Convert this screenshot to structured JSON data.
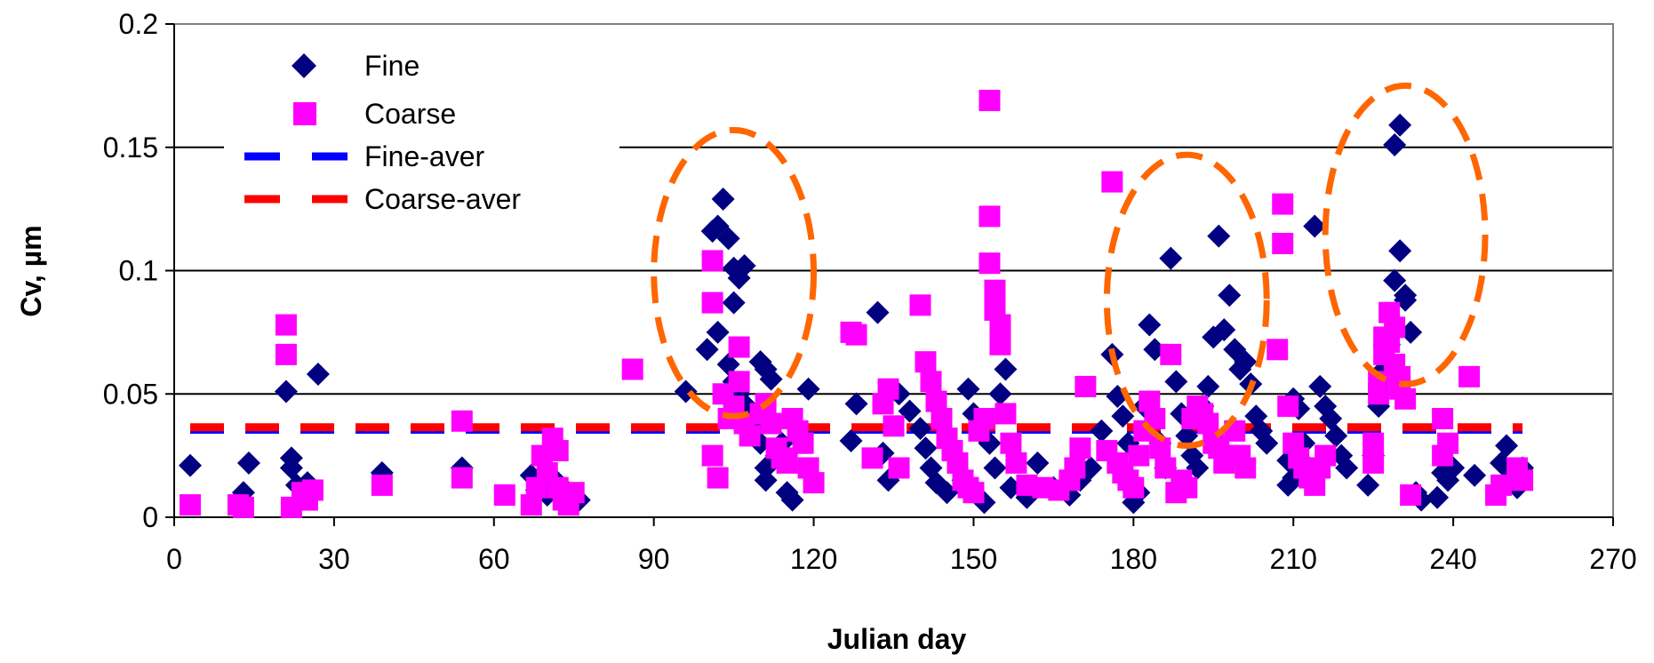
{
  "chart_data": {
    "type": "scatter",
    "title": "",
    "xlabel": "Julian day",
    "ylabel": "Cv, µm",
    "xlim": [
      0,
      270
    ],
    "ylim": [
      0,
      0.2
    ],
    "xticks": [
      0,
      30,
      60,
      90,
      120,
      150,
      180,
      210,
      240,
      270
    ],
    "yticks": [
      0,
      0.05,
      0.1,
      0.15,
      0.2
    ],
    "xtick_labels": [
      "0",
      "30",
      "60",
      "90",
      "120",
      "150",
      "180",
      "210",
      "240",
      "270"
    ],
    "ytick_labels": [
      "0",
      "0.05",
      "0.1",
      "0.15",
      "0.2"
    ],
    "grid": "horizontal",
    "legend_position": "top-left",
    "series": [
      {
        "name": "Fine",
        "marker": "diamond",
        "color": "#000080",
        "points": [
          [
            3,
            0.021
          ],
          [
            13,
            0.01
          ],
          [
            14,
            0.022
          ],
          [
            21,
            0.051
          ],
          [
            22,
            0.024
          ],
          [
            22,
            0.02
          ],
          [
            23,
            0.013
          ],
          [
            24,
            0.011
          ],
          [
            25,
            0.014
          ],
          [
            27,
            0.058
          ],
          [
            39,
            0.018
          ],
          [
            54,
            0.02
          ],
          [
            67,
            0.017
          ],
          [
            68,
            0.011
          ],
          [
            70,
            0.009
          ],
          [
            72,
            0.014
          ],
          [
            74,
            0.01
          ],
          [
            76,
            0.007
          ],
          [
            96,
            0.051
          ],
          [
            100,
            0.068
          ],
          [
            101,
            0.116
          ],
          [
            102,
            0.118
          ],
          [
            103,
            0.129
          ],
          [
            104,
            0.113
          ],
          [
            105,
            0.101
          ],
          [
            105,
            0.087
          ],
          [
            106,
            0.097
          ],
          [
            107,
            0.102
          ],
          [
            102,
            0.075
          ],
          [
            104,
            0.062
          ],
          [
            105,
            0.055
          ],
          [
            106,
            0.05
          ],
          [
            107,
            0.046
          ],
          [
            108,
            0.04
          ],
          [
            109,
            0.035
          ],
          [
            110,
            0.03
          ],
          [
            110,
            0.063
          ],
          [
            111,
            0.06
          ],
          [
            112,
            0.056
          ],
          [
            111,
            0.02
          ],
          [
            111,
            0.015
          ],
          [
            113,
            0.025
          ],
          [
            114,
            0.03
          ],
          [
            115,
            0.01
          ],
          [
            116,
            0.007
          ],
          [
            119,
            0.052
          ],
          [
            127,
            0.031
          ],
          [
            128,
            0.046
          ],
          [
            132,
            0.083
          ],
          [
            133,
            0.026
          ],
          [
            134,
            0.015
          ],
          [
            136,
            0.05
          ],
          [
            138,
            0.043
          ],
          [
            140,
            0.036
          ],
          [
            141,
            0.028
          ],
          [
            142,
            0.02
          ],
          [
            143,
            0.014
          ],
          [
            145,
            0.01
          ],
          [
            148,
            0.015
          ],
          [
            149,
            0.052
          ],
          [
            150,
            0.042
          ],
          [
            151,
            0.035
          ],
          [
            152,
            0.006
          ],
          [
            153,
            0.03
          ],
          [
            154,
            0.02
          ],
          [
            155,
            0.05
          ],
          [
            156,
            0.06
          ],
          [
            157,
            0.012
          ],
          [
            160,
            0.008
          ],
          [
            162,
            0.022
          ],
          [
            165,
            0.012
          ],
          [
            168,
            0.009
          ],
          [
            170,
            0.015
          ],
          [
            172,
            0.02
          ],
          [
            174,
            0.035
          ],
          [
            176,
            0.066
          ],
          [
            177,
            0.049
          ],
          [
            178,
            0.041
          ],
          [
            179,
            0.03
          ],
          [
            180,
            0.006
          ],
          [
            181,
            0.01
          ],
          [
            182,
            0.045
          ],
          [
            183,
            0.078
          ],
          [
            184,
            0.068
          ],
          [
            185,
            0.03
          ],
          [
            186,
            0.02
          ],
          [
            187,
            0.105
          ],
          [
            188,
            0.055
          ],
          [
            189,
            0.042
          ],
          [
            190,
            0.033
          ],
          [
            191,
            0.025
          ],
          [
            192,
            0.02
          ],
          [
            193,
            0.045
          ],
          [
            194,
            0.053
          ],
          [
            195,
            0.073
          ],
          [
            196,
            0.114
          ],
          [
            197,
            0.076
          ],
          [
            198,
            0.09
          ],
          [
            199,
            0.068
          ],
          [
            200,
            0.06
          ],
          [
            201,
            0.063
          ],
          [
            202,
            0.054
          ],
          [
            203,
            0.041
          ],
          [
            204,
            0.035
          ],
          [
            205,
            0.03
          ],
          [
            209,
            0.013
          ],
          [
            209,
            0.023
          ],
          [
            210,
            0.016
          ],
          [
            210,
            0.048
          ],
          [
            211,
            0.044
          ],
          [
            212,
            0.03
          ],
          [
            213,
            0.02
          ],
          [
            214,
            0.118
          ],
          [
            215,
            0.053
          ],
          [
            216,
            0.045
          ],
          [
            217,
            0.04
          ],
          [
            218,
            0.033
          ],
          [
            219,
            0.025
          ],
          [
            220,
            0.02
          ],
          [
            224,
            0.013
          ],
          [
            225,
            0.025
          ],
          [
            226,
            0.045
          ],
          [
            227,
            0.06
          ],
          [
            228,
            0.07
          ],
          [
            229,
            0.096
          ],
          [
            230,
            0.108
          ],
          [
            231,
            0.09
          ],
          [
            229,
            0.151
          ],
          [
            230,
            0.159
          ],
          [
            231,
            0.088
          ],
          [
            232,
            0.075
          ],
          [
            233,
            0.01
          ],
          [
            234,
            0.007
          ],
          [
            237,
            0.008
          ],
          [
            238,
            0.018
          ],
          [
            239,
            0.015
          ],
          [
            240,
            0.02
          ],
          [
            244,
            0.017
          ],
          [
            249,
            0.022
          ],
          [
            250,
            0.029
          ],
          [
            251,
            0.018
          ],
          [
            252,
            0.012
          ],
          [
            253,
            0.02
          ]
        ]
      },
      {
        "name": "Coarse",
        "marker": "square",
        "color": "#FF00FF",
        "points": [
          [
            3,
            0.005
          ],
          [
            12,
            0.005
          ],
          [
            13,
            0.004
          ],
          [
            21,
            0.078
          ],
          [
            21,
            0.066
          ],
          [
            22,
            0.004
          ],
          [
            24,
            0.01
          ],
          [
            25,
            0.007
          ],
          [
            26,
            0.011
          ],
          [
            39,
            0.013
          ],
          [
            54,
            0.016
          ],
          [
            54,
            0.039
          ],
          [
            62,
            0.009
          ],
          [
            67,
            0.005
          ],
          [
            68,
            0.012
          ],
          [
            69,
            0.025
          ],
          [
            70,
            0.018
          ],
          [
            71,
            0.032
          ],
          [
            72,
            0.027
          ],
          [
            72,
            0.012
          ],
          [
            73,
            0.007
          ],
          [
            74,
            0.005
          ],
          [
            75,
            0.01
          ],
          [
            86,
            0.06
          ],
          [
            101,
            0.104
          ],
          [
            101,
            0.087
          ],
          [
            101,
            0.025
          ],
          [
            102,
            0.016
          ],
          [
            103,
            0.05
          ],
          [
            104,
            0.04
          ],
          [
            105,
            0.045
          ],
          [
            106,
            0.055
          ],
          [
            106,
            0.069
          ],
          [
            107,
            0.038
          ],
          [
            108,
            0.033
          ],
          [
            110,
            0.042
          ],
          [
            111,
            0.046
          ],
          [
            112,
            0.038
          ],
          [
            113,
            0.028
          ],
          [
            114,
            0.024
          ],
          [
            115,
            0.022
          ],
          [
            116,
            0.04
          ],
          [
            117,
            0.035
          ],
          [
            118,
            0.03
          ],
          [
            119,
            0.02
          ],
          [
            120,
            0.014
          ],
          [
            127,
            0.075
          ],
          [
            128,
            0.074
          ],
          [
            131,
            0.024
          ],
          [
            133,
            0.046
          ],
          [
            134,
            0.052
          ],
          [
            135,
            0.037
          ],
          [
            136,
            0.02
          ],
          [
            140,
            0.086
          ],
          [
            141,
            0.063
          ],
          [
            142,
            0.055
          ],
          [
            143,
            0.047
          ],
          [
            144,
            0.04
          ],
          [
            145,
            0.032
          ],
          [
            146,
            0.027
          ],
          [
            147,
            0.022
          ],
          [
            148,
            0.015
          ],
          [
            149,
            0.012
          ],
          [
            150,
            0.01
          ],
          [
            151,
            0.035
          ],
          [
            152,
            0.04
          ],
          [
            153,
            0.169
          ],
          [
            153,
            0.122
          ],
          [
            153,
            0.103
          ],
          [
            154,
            0.092
          ],
          [
            154,
            0.084
          ],
          [
            155,
            0.078
          ],
          [
            155,
            0.07
          ],
          [
            156,
            0.042
          ],
          [
            157,
            0.03
          ],
          [
            158,
            0.022
          ],
          [
            160,
            0.013
          ],
          [
            163,
            0.012
          ],
          [
            166,
            0.011
          ],
          [
            168,
            0.015
          ],
          [
            169,
            0.02
          ],
          [
            170,
            0.028
          ],
          [
            171,
            0.053
          ],
          [
            175,
            0.027
          ],
          [
            176,
            0.136
          ],
          [
            177,
            0.022
          ],
          [
            178,
            0.018
          ],
          [
            179,
            0.015
          ],
          [
            180,
            0.012
          ],
          [
            181,
            0.025
          ],
          [
            182,
            0.035
          ],
          [
            183,
            0.047
          ],
          [
            184,
            0.04
          ],
          [
            185,
            0.028
          ],
          [
            186,
            0.02
          ],
          [
            187,
            0.066
          ],
          [
            188,
            0.01
          ],
          [
            189,
            0.015
          ],
          [
            190,
            0.012
          ],
          [
            191,
            0.04
          ],
          [
            192,
            0.045
          ],
          [
            193,
            0.042
          ],
          [
            194,
            0.038
          ],
          [
            195,
            0.03
          ],
          [
            196,
            0.028
          ],
          [
            197,
            0.022
          ],
          [
            198,
            0.025
          ],
          [
            199,
            0.035
          ],
          [
            200,
            0.025
          ],
          [
            201,
            0.02
          ],
          [
            207,
            0.068
          ],
          [
            208,
            0.127
          ],
          [
            208,
            0.111
          ],
          [
            209,
            0.045
          ],
          [
            210,
            0.03
          ],
          [
            211,
            0.024
          ],
          [
            212,
            0.02
          ],
          [
            213,
            0.016
          ],
          [
            214,
            0.013
          ],
          [
            215,
            0.02
          ],
          [
            216,
            0.025
          ],
          [
            225,
            0.03
          ],
          [
            225,
            0.022
          ],
          [
            226,
            0.05
          ],
          [
            226,
            0.055
          ],
          [
            227,
            0.066
          ],
          [
            227,
            0.073
          ],
          [
            228,
            0.071
          ],
          [
            228,
            0.083
          ],
          [
            229,
            0.077
          ],
          [
            229,
            0.062
          ],
          [
            230,
            0.057
          ],
          [
            230,
            0.052
          ],
          [
            231,
            0.048
          ],
          [
            232,
            0.009
          ],
          [
            238,
            0.04
          ],
          [
            238,
            0.025
          ],
          [
            239,
            0.03
          ],
          [
            243,
            0.057
          ],
          [
            248,
            0.009
          ],
          [
            249,
            0.013
          ],
          [
            252,
            0.02
          ],
          [
            253,
            0.015
          ]
        ]
      },
      {
        "name": "Fine-aver",
        "type": "line",
        "style": "dashed",
        "color": "#0000FF",
        "x": [
          3,
          253
        ],
        "y": [
          0.0355,
          0.0355
        ]
      },
      {
        "name": "Coarse-aver",
        "type": "line",
        "style": "dashed",
        "color": "#FF0000",
        "x": [
          3,
          253
        ],
        "y": [
          0.0365,
          0.0365
        ]
      }
    ],
    "annotations": [
      {
        "shape": "dashed-ellipse",
        "color": "#FF6600",
        "center": [
          105,
          0.099
        ],
        "radius_x": 15,
        "radius_y": 0.058
      },
      {
        "shape": "dashed-ellipse",
        "color": "#FF6600",
        "center": [
          190,
          0.088
        ],
        "radius_x": 15,
        "radius_y": 0.059
      },
      {
        "shape": "dashed-ellipse",
        "color": "#FF6600",
        "center": [
          231,
          0.1145
        ],
        "radius_x": 15,
        "radius_y": 0.0605
      }
    ]
  }
}
